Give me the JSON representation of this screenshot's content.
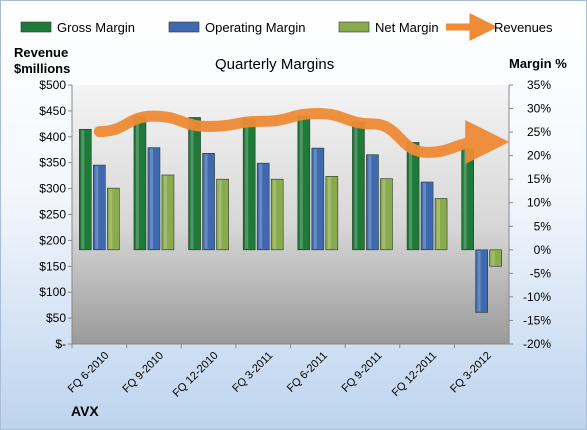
{
  "chart_data": {
    "type": "bar",
    "title": "Quarterly Margins",
    "categories": [
      "FQ 6-2010",
      "FQ 9-2010",
      "FQ 12-2010",
      "FQ 3-2011",
      "FQ 6-2011",
      "FQ 9-2011",
      "FQ 12-2011",
      "FQ 3-2012"
    ],
    "series": [
      {
        "name": "Gross Margin",
        "axis": "right",
        "color": "#1f7a3a",
        "values": [
          25.6,
          28.3,
          28.1,
          27.7,
          28.4,
          27.2,
          22.8,
          21.5
        ]
      },
      {
        "name": "Operating Margin",
        "axis": "right",
        "color": "#3f6ab0",
        "values": [
          18.0,
          21.7,
          20.5,
          18.4,
          21.6,
          20.2,
          14.4,
          -13.3
        ]
      },
      {
        "name": "Net Margin",
        "axis": "right",
        "color": "#8aaa4e",
        "values": [
          13.1,
          15.9,
          15.0,
          15.0,
          15.6,
          15.1,
          10.9,
          -3.5
        ]
      },
      {
        "name": "Revenues",
        "axis": "left",
        "type": "line",
        "color": "#ef8b36",
        "values": [
          410,
          440,
          420,
          430,
          445,
          425,
          370,
          390
        ]
      }
    ],
    "left_axis": {
      "label": "Revenue $millions",
      "label_line1": "Revenue",
      "label_line2": "$millions",
      "range": [
        0,
        500
      ],
      "ticks": [
        "$-",
        "$50",
        "$100",
        "$150",
        "$200",
        "$250",
        "$300",
        "$350",
        "$400",
        "$450",
        "$500"
      ]
    },
    "right_axis": {
      "label": "Margin %",
      "range": [
        -20,
        35
      ],
      "ticks": [
        "-20%",
        "-15%",
        "-10%",
        "-5%",
        "0%",
        "5%",
        "10%",
        "15%",
        "20%",
        "25%",
        "30%",
        "35%"
      ]
    },
    "legend_position": "top",
    "grid": false,
    "footer": "AVX"
  }
}
